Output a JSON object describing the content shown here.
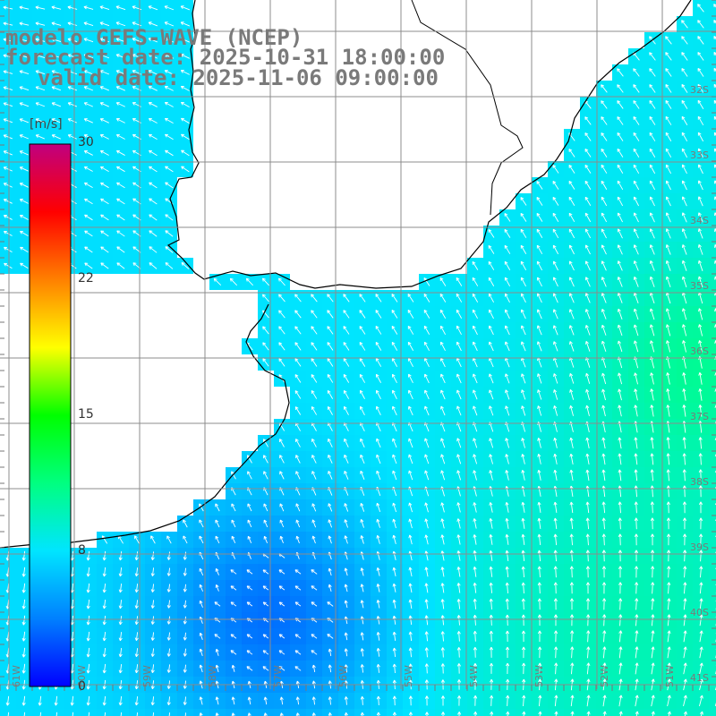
{
  "title": {
    "line1": "modelo GEFS-WAVE (NCEP)",
    "line2": "forecast date: 2025-10-31 18:00:00",
    "line3": "valid date: 2025-11-06 09:00:00"
  },
  "colorbar": {
    "unit": "[m/s]",
    "ticks": [
      "30",
      "22",
      "15",
      "8",
      "0"
    ],
    "tick_values": [
      30,
      22,
      15,
      8,
      0
    ],
    "min": 0,
    "max": 30,
    "colors": [
      "#0000ff",
      "#0080ff",
      "#00e5ff",
      "#00ff80",
      "#00ff00",
      "#ffff00",
      "#ff8000",
      "#ff0000",
      "#c00080"
    ]
  },
  "lat_labels": [
    "32S",
    "33S",
    "34S",
    "35S",
    "36S",
    "37S",
    "38S",
    "39S",
    "40S",
    "41S"
  ],
  "lon_labels": [
    "61W",
    "60W",
    "59W",
    "58W",
    "57W",
    "56W",
    "55W",
    "54W",
    "53W",
    "52W",
    "51W"
  ],
  "field": {
    "variable": "wind speed",
    "typical_range_m_s": [
      3,
      11
    ],
    "colors": {
      "ocean_low": "#0022e8",
      "ocean_mid": "#0a8cf0",
      "ocean_high": "#19d3e8",
      "land": "#ffffff",
      "coast": "#000000",
      "grid": "#8c8c8c",
      "arrows": "#ffffff"
    }
  }
}
